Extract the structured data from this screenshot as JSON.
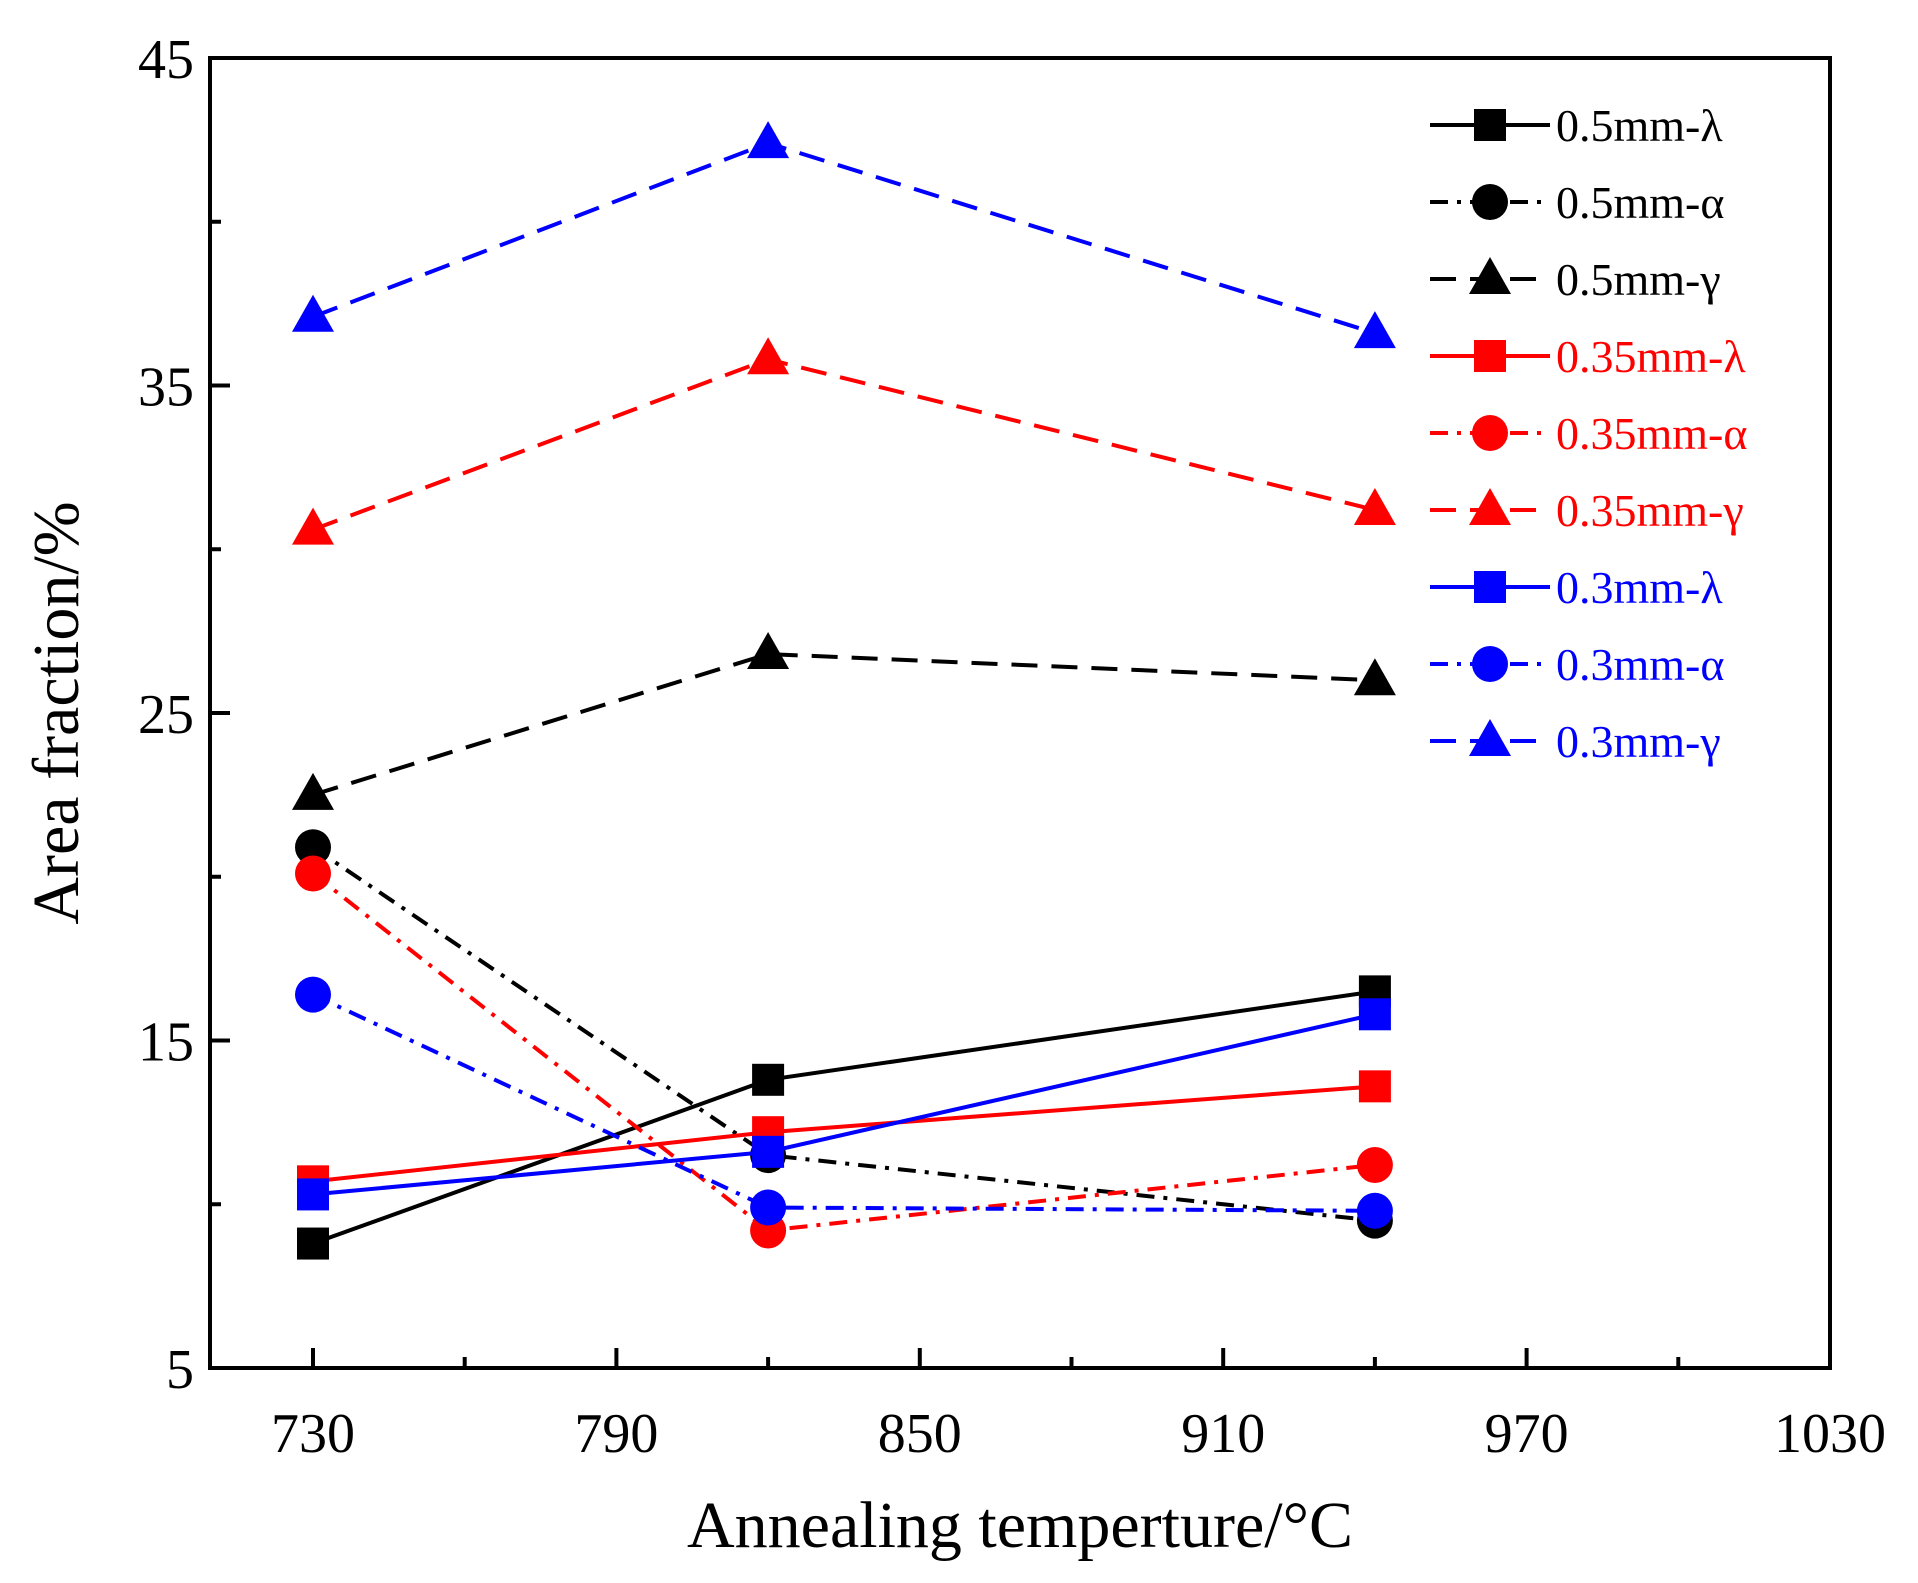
{
  "chart_data": {
    "type": "line",
    "xlabel": "Annealing temperture/°C",
    "ylabel": "Area fraction/%",
    "xlim": [
      710,
      1030
    ],
    "ylim": [
      5,
      45
    ],
    "xticks": [
      730,
      790,
      850,
      910,
      970,
      1030
    ],
    "yticks": [
      5,
      15,
      25,
      35,
      45
    ],
    "x": [
      730,
      820,
      940
    ],
    "legend_position": "top-right",
    "series": [
      {
        "name": "0.5mm-λ",
        "color": "#000000",
        "line": "solid",
        "marker": "square",
        "values": [
          8.8,
          13.8,
          16.5
        ]
      },
      {
        "name": "0.5mm-α",
        "color": "#000000",
        "line": "dashdot",
        "marker": "circle",
        "values": [
          20.9,
          11.5,
          9.5
        ]
      },
      {
        "name": "0.5mm-γ",
        "color": "#000000",
        "line": "dashed",
        "marker": "triangle",
        "values": [
          22.5,
          26.8,
          26.0
        ]
      },
      {
        "name": "0.35mm-λ",
        "color": "#ff0000",
        "line": "solid",
        "marker": "square",
        "values": [
          10.7,
          12.2,
          13.6
        ]
      },
      {
        "name": "0.35mm-α",
        "color": "#ff0000",
        "line": "dashdot",
        "marker": "circle",
        "values": [
          20.1,
          9.2,
          11.2
        ]
      },
      {
        "name": "0.35mm-γ",
        "color": "#ff0000",
        "line": "dashed",
        "marker": "triangle",
        "values": [
          30.6,
          35.8,
          31.2
        ]
      },
      {
        "name": "0.3mm-λ",
        "color": "#0000ff",
        "line": "solid",
        "marker": "square",
        "values": [
          10.3,
          11.6,
          15.8
        ]
      },
      {
        "name": "0.3mm-α",
        "color": "#0000ff",
        "line": "dashdot",
        "marker": "circle",
        "values": [
          16.4,
          9.9,
          9.8
        ]
      },
      {
        "name": "0.3mm-γ",
        "color": "#0000ff",
        "line": "dashed",
        "marker": "triangle",
        "values": [
          37.1,
          42.4,
          36.6
        ]
      }
    ]
  }
}
